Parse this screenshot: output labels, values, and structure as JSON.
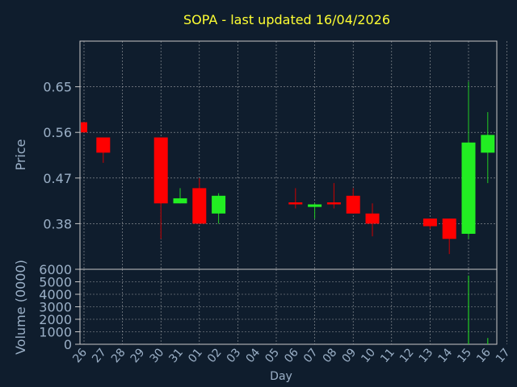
{
  "title": "SOPA - last updated 16/04/2026",
  "colors": {
    "background": "#0f1d2d",
    "grid": "#c8c8c8",
    "axis_text": "#9bb0c7",
    "title": "#ffff33",
    "up": "#22ee22",
    "down": "#ff0000",
    "wick_up": "#22cc22",
    "wick_down": "#cc0000"
  },
  "chart_data": [
    {
      "type": "candlestick",
      "title": "SOPA - last updated 16/04/2026",
      "ylabel": "Price",
      "xlabel": "Day",
      "ylim": [
        0.29,
        0.74
      ],
      "yticks": [
        0.38,
        0.47,
        0.56,
        0.65
      ],
      "ytick_labels": [
        "0.38",
        "0.47",
        "0.56",
        "0.65"
      ],
      "x_tick_labels": [
        "26",
        "27",
        "28",
        "29",
        "30",
        "31",
        "01",
        "02",
        "03",
        "04",
        "05",
        "06",
        "07",
        "08",
        "09",
        "10",
        "11",
        "12",
        "13",
        "14",
        "15",
        "16",
        "17"
      ],
      "grid": true,
      "candles": [
        {
          "day": "26",
          "open": 0.58,
          "high": 0.58,
          "low": 0.56,
          "close": 0.56
        },
        {
          "day": "27",
          "open": 0.55,
          "high": 0.55,
          "low": 0.5,
          "close": 0.52
        },
        {
          "day": "30",
          "open": 0.55,
          "high": 0.55,
          "low": 0.35,
          "close": 0.42
        },
        {
          "day": "31",
          "open": 0.42,
          "high": 0.45,
          "low": 0.42,
          "close": 0.43
        },
        {
          "day": "01",
          "open": 0.45,
          "high": 0.47,
          "low": 0.38,
          "close": 0.38
        },
        {
          "day": "02",
          "open": 0.4,
          "high": 0.44,
          "low": 0.38,
          "close": 0.435
        },
        {
          "day": "06",
          "open": 0.422,
          "high": 0.45,
          "low": 0.41,
          "close": 0.418
        },
        {
          "day": "07",
          "open": 0.413,
          "high": 0.42,
          "low": 0.39,
          "close": 0.418
        },
        {
          "day": "08",
          "open": 0.422,
          "high": 0.46,
          "low": 0.41,
          "close": 0.418
        },
        {
          "day": "09",
          "open": 0.435,
          "high": 0.45,
          "low": 0.4,
          "close": 0.4
        },
        {
          "day": "10",
          "open": 0.4,
          "high": 0.42,
          "low": 0.355,
          "close": 0.38
        },
        {
          "day": "13",
          "open": 0.39,
          "high": 0.39,
          "low": 0.37,
          "close": 0.375
        },
        {
          "day": "14",
          "open": 0.39,
          "high": 0.39,
          "low": 0.32,
          "close": 0.35
        },
        {
          "day": "15",
          "open": 0.36,
          "high": 0.66,
          "low": 0.35,
          "close": 0.54
        },
        {
          "day": "16",
          "open": 0.52,
          "high": 0.6,
          "low": 0.46,
          "close": 0.555
        }
      ]
    },
    {
      "type": "bar",
      "ylabel": "Volume (0000)",
      "xlabel": "Day",
      "ylim": [
        0,
        6000
      ],
      "yticks": [
        0,
        1000,
        2000,
        3000,
        4000,
        5000,
        6000
      ],
      "ytick_labels": [
        "0",
        "1000",
        "2000",
        "3000",
        "4000",
        "5000",
        "6000"
      ],
      "grid": true,
      "bars": [
        {
          "day": "15",
          "value": 5500,
          "direction": "up"
        },
        {
          "day": "16",
          "value": 500,
          "direction": "up"
        }
      ]
    }
  ]
}
